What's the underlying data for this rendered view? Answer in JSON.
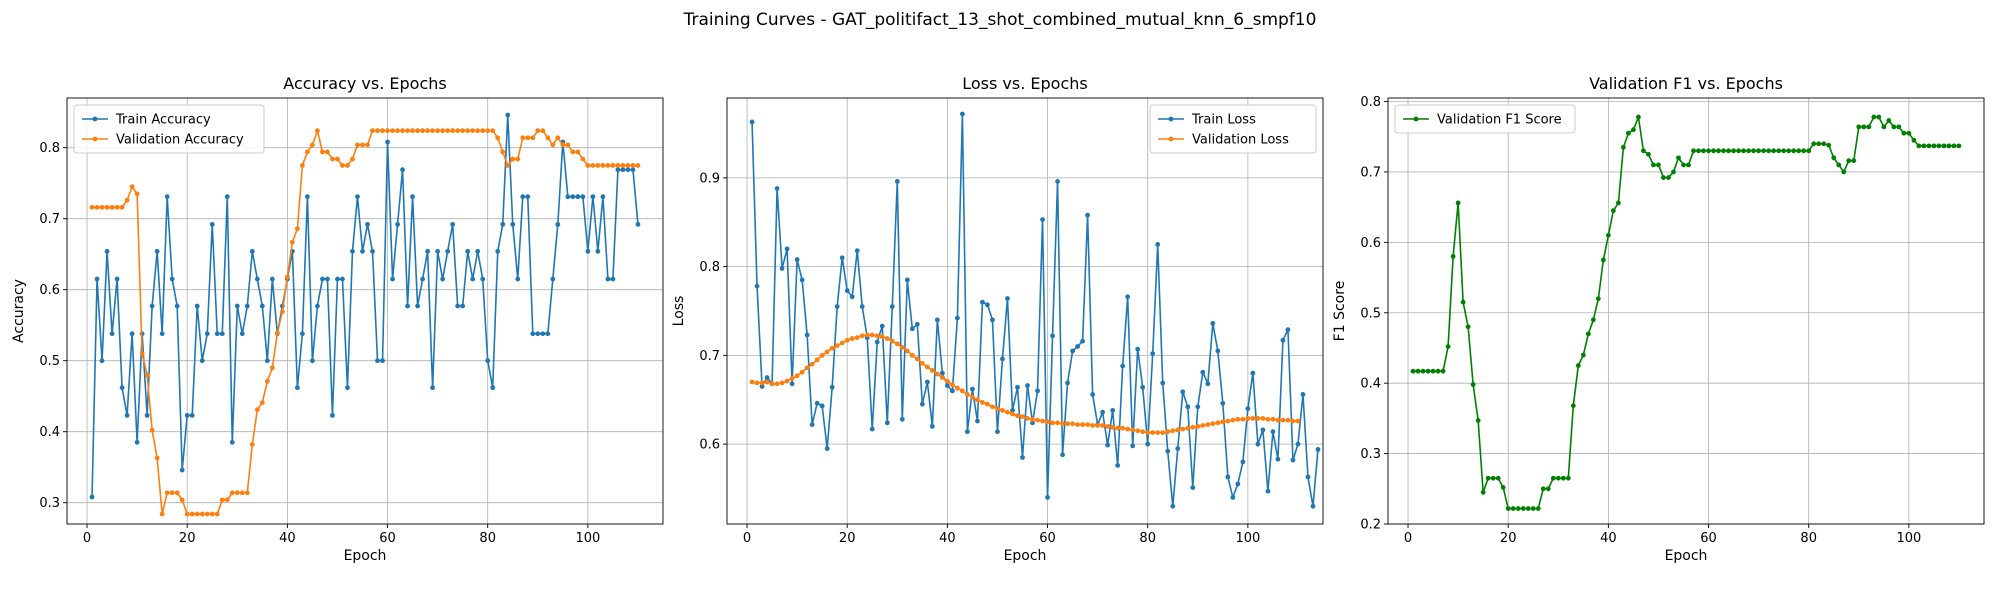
{
  "figure": {
    "suptitle": "Training Curves - GAT_politifact_13_shot_combined_mutual_knn_6_smpf10"
  },
  "chart_data": [
    {
      "type": "line",
      "title": "Accuracy vs. Epochs",
      "xlabel": "Epoch",
      "ylabel": "Accuracy",
      "xlim": [
        -4,
        115
      ],
      "ylim": [
        0.27,
        0.87
      ],
      "xticks": [
        0,
        20,
        40,
        60,
        80,
        100
      ],
      "yticks": [
        0.3,
        0.4,
        0.5,
        0.6,
        0.7,
        0.8
      ],
      "ytick_labels": [
        "0.3",
        "0.4",
        "0.5",
        "0.6",
        "0.7",
        "0.8"
      ],
      "grid": true,
      "legend": "top-left",
      "x_start": 1,
      "series": [
        {
          "name": "Train Accuracy",
          "color": "#1f77b4",
          "values": [
            0.308,
            0.615,
            0.5,
            0.654,
            0.538,
            0.615,
            0.462,
            0.423,
            0.538,
            0.385,
            0.538,
            0.423,
            0.577,
            0.654,
            0.538,
            0.731,
            0.615,
            0.577,
            0.346,
            0.423,
            0.423,
            0.577,
            0.5,
            0.538,
            0.692,
            0.538,
            0.538,
            0.731,
            0.385,
            0.577,
            0.538,
            0.577,
            0.654,
            0.615,
            0.577,
            0.5,
            0.615,
            0.538,
            0.577,
            0.615,
            0.654,
            0.462,
            0.538,
            0.731,
            0.5,
            0.577,
            0.615,
            0.615,
            0.423,
            0.615,
            0.615,
            0.462,
            0.654,
            0.731,
            0.654,
            0.692,
            0.654,
            0.5,
            0.5,
            0.808,
            0.615,
            0.692,
            0.769,
            0.577,
            0.731,
            0.577,
            0.615,
            0.654,
            0.462,
            0.654,
            0.615,
            0.654,
            0.692,
            0.577,
            0.577,
            0.654,
            0.615,
            0.654,
            0.615,
            0.5,
            0.462,
            0.654,
            0.692,
            0.846,
            0.692,
            0.615,
            0.731,
            0.731,
            0.538,
            0.538,
            0.538,
            0.538,
            0.615,
            0.692,
            0.808,
            0.731,
            0.731,
            0.731,
            0.731,
            0.654,
            0.731,
            0.654,
            0.731,
            0.615,
            0.615,
            0.769,
            0.769,
            0.769,
            0.769,
            0.692
          ]
        },
        {
          "name": "Validation Accuracy",
          "color": "#ff7f0e",
          "values": [
            0.716,
            0.716,
            0.716,
            0.716,
            0.716,
            0.716,
            0.716,
            0.726,
            0.745,
            0.735,
            0.51,
            0.48,
            0.402,
            0.363,
            0.284,
            0.314,
            0.314,
            0.314,
            0.304,
            0.284,
            0.284,
            0.284,
            0.284,
            0.284,
            0.284,
            0.284,
            0.304,
            0.304,
            0.314,
            0.314,
            0.314,
            0.314,
            0.382,
            0.431,
            0.441,
            0.471,
            0.49,
            0.539,
            0.569,
            0.618,
            0.667,
            0.686,
            0.775,
            0.794,
            0.804,
            0.824,
            0.794,
            0.794,
            0.784,
            0.784,
            0.775,
            0.775,
            0.784,
            0.804,
            0.804,
            0.804,
            0.824,
            0.824,
            0.824,
            0.824,
            0.824,
            0.824,
            0.824,
            0.824,
            0.824,
            0.824,
            0.824,
            0.824,
            0.824,
            0.824,
            0.824,
            0.824,
            0.824,
            0.824,
            0.824,
            0.824,
            0.824,
            0.824,
            0.824,
            0.824,
            0.824,
            0.814,
            0.794,
            0.775,
            0.784,
            0.784,
            0.814,
            0.814,
            0.814,
            0.824,
            0.824,
            0.814,
            0.804,
            0.814,
            0.804,
            0.804,
            0.794,
            0.794,
            0.784,
            0.775,
            0.775,
            0.775,
            0.775,
            0.775,
            0.775,
            0.775,
            0.775,
            0.775,
            0.775,
            0.775
          ]
        }
      ]
    },
    {
      "type": "line",
      "title": "Loss vs. Epochs",
      "xlabel": "Epoch",
      "ylabel": "Loss",
      "xlim": [
        -4,
        115
      ],
      "ylim": [
        0.51,
        0.99
      ],
      "xticks": [
        0,
        20,
        40,
        60,
        80,
        100
      ],
      "yticks": [
        0.6,
        0.7,
        0.8,
        0.9
      ],
      "ytick_labels": [
        "0.6",
        "0.7",
        "0.8",
        "0.9"
      ],
      "grid": true,
      "legend": "top-right",
      "x_start": 1,
      "series": [
        {
          "name": "Train Loss",
          "color": "#1f77b4",
          "values": [
            0.963,
            0.778,
            0.665,
            0.675,
            0.668,
            0.888,
            0.798,
            0.82,
            0.668,
            0.808,
            0.785,
            0.723,
            0.622,
            0.646,
            0.643,
            0.595,
            0.664,
            0.755,
            0.81,
            0.773,
            0.766,
            0.818,
            0.755,
            0.72,
            0.617,
            0.715,
            0.733,
            0.624,
            0.755,
            0.896,
            0.628,
            0.785,
            0.73,
            0.735,
            0.645,
            0.67,
            0.62,
            0.74,
            0.68,
            0.666,
            0.66,
            0.742,
            0.972,
            0.614,
            0.662,
            0.626,
            0.76,
            0.757,
            0.74,
            0.614,
            0.696,
            0.764,
            0.638,
            0.664,
            0.585,
            0.666,
            0.624,
            0.66,
            0.853,
            0.54,
            0.722,
            0.896,
            0.588,
            0.669,
            0.705,
            0.71,
            0.716,
            0.858,
            0.656,
            0.622,
            0.636,
            0.599,
            0.638,
            0.576,
            0.688,
            0.766,
            0.598,
            0.707,
            0.664,
            0.6,
            0.702,
            0.825,
            0.669,
            0.592,
            0.53,
            0.595,
            0.659,
            0.642,
            0.551,
            0.642,
            0.681,
            0.668,
            0.736,
            0.705,
            0.646,
            0.563,
            0.54,
            0.555,
            0.58,
            0.64,
            0.68,
            0.6,
            0.616,
            0.547,
            0.614,
            0.583,
            0.717,
            0.729,
            0.582,
            0.6,
            0.656,
            0.563,
            0.53,
            0.594
          ]
        },
        {
          "name": "Validation Loss",
          "color": "#ff7f0e",
          "values": [
            0.67,
            0.669,
            0.669,
            0.67,
            0.668,
            0.668,
            0.669,
            0.671,
            0.674,
            0.677,
            0.681,
            0.686,
            0.69,
            0.695,
            0.7,
            0.704,
            0.708,
            0.711,
            0.714,
            0.717,
            0.719,
            0.72,
            0.722,
            0.723,
            0.723,
            0.722,
            0.721,
            0.719,
            0.716,
            0.713,
            0.709,
            0.705,
            0.7,
            0.696,
            0.691,
            0.687,
            0.683,
            0.679,
            0.675,
            0.671,
            0.667,
            0.663,
            0.66,
            0.656,
            0.653,
            0.65,
            0.647,
            0.645,
            0.642,
            0.64,
            0.638,
            0.636,
            0.634,
            0.632,
            0.631,
            0.629,
            0.628,
            0.627,
            0.626,
            0.625,
            0.624,
            0.624,
            0.623,
            0.623,
            0.623,
            0.622,
            0.622,
            0.622,
            0.621,
            0.621,
            0.621,
            0.62,
            0.619,
            0.618,
            0.618,
            0.617,
            0.616,
            0.615,
            0.614,
            0.613,
            0.613,
            0.613,
            0.613,
            0.614,
            0.615,
            0.616,
            0.617,
            0.618,
            0.619,
            0.62,
            0.621,
            0.622,
            0.623,
            0.624,
            0.625,
            0.626,
            0.627,
            0.628,
            0.628,
            0.629,
            0.629,
            0.629,
            0.629,
            0.628,
            0.628,
            0.627,
            0.627,
            0.627,
            0.626,
            0.626
          ]
        }
      ]
    },
    {
      "type": "line",
      "title": "Validation F1 vs. Epochs",
      "xlabel": "Epoch",
      "ylabel": "F1 Score",
      "xlim": [
        -4,
        115
      ],
      "ylim": [
        0.2,
        0.805
      ],
      "xticks": [
        0,
        20,
        40,
        60,
        80,
        100
      ],
      "yticks": [
        0.2,
        0.3,
        0.4,
        0.5,
        0.6,
        0.7,
        0.8
      ],
      "ytick_labels": [
        "0.2",
        "0.3",
        "0.4",
        "0.5",
        "0.6",
        "0.7",
        "0.8"
      ],
      "grid": true,
      "legend": "top-left",
      "x_start": 1,
      "series": [
        {
          "name": "Validation F1 Score",
          "color": "#008000",
          "values": [
            0.417,
            0.417,
            0.417,
            0.417,
            0.417,
            0.417,
            0.417,
            0.452,
            0.58,
            0.656,
            0.515,
            0.48,
            0.398,
            0.347,
            0.245,
            0.265,
            0.265,
            0.265,
            0.252,
            0.222,
            0.222,
            0.222,
            0.222,
            0.222,
            0.222,
            0.222,
            0.25,
            0.25,
            0.265,
            0.265,
            0.265,
            0.265,
            0.368,
            0.425,
            0.44,
            0.47,
            0.49,
            0.52,
            0.575,
            0.61,
            0.645,
            0.656,
            0.735,
            0.755,
            0.76,
            0.778,
            0.73,
            0.725,
            0.71,
            0.71,
            0.692,
            0.692,
            0.7,
            0.72,
            0.71,
            0.71,
            0.73,
            0.73,
            0.73,
            0.73,
            0.73,
            0.73,
            0.73,
            0.73,
            0.73,
            0.73,
            0.73,
            0.73,
            0.73,
            0.73,
            0.73,
            0.73,
            0.73,
            0.73,
            0.73,
            0.73,
            0.73,
            0.73,
            0.73,
            0.73,
            0.74,
            0.74,
            0.74,
            0.738,
            0.72,
            0.71,
            0.7,
            0.716,
            0.716,
            0.764,
            0.764,
            0.764,
            0.778,
            0.778,
            0.764,
            0.773,
            0.764,
            0.764,
            0.755,
            0.755,
            0.745,
            0.737,
            0.737,
            0.737,
            0.737,
            0.737,
            0.737,
            0.737,
            0.737,
            0.737
          ]
        }
      ]
    }
  ]
}
